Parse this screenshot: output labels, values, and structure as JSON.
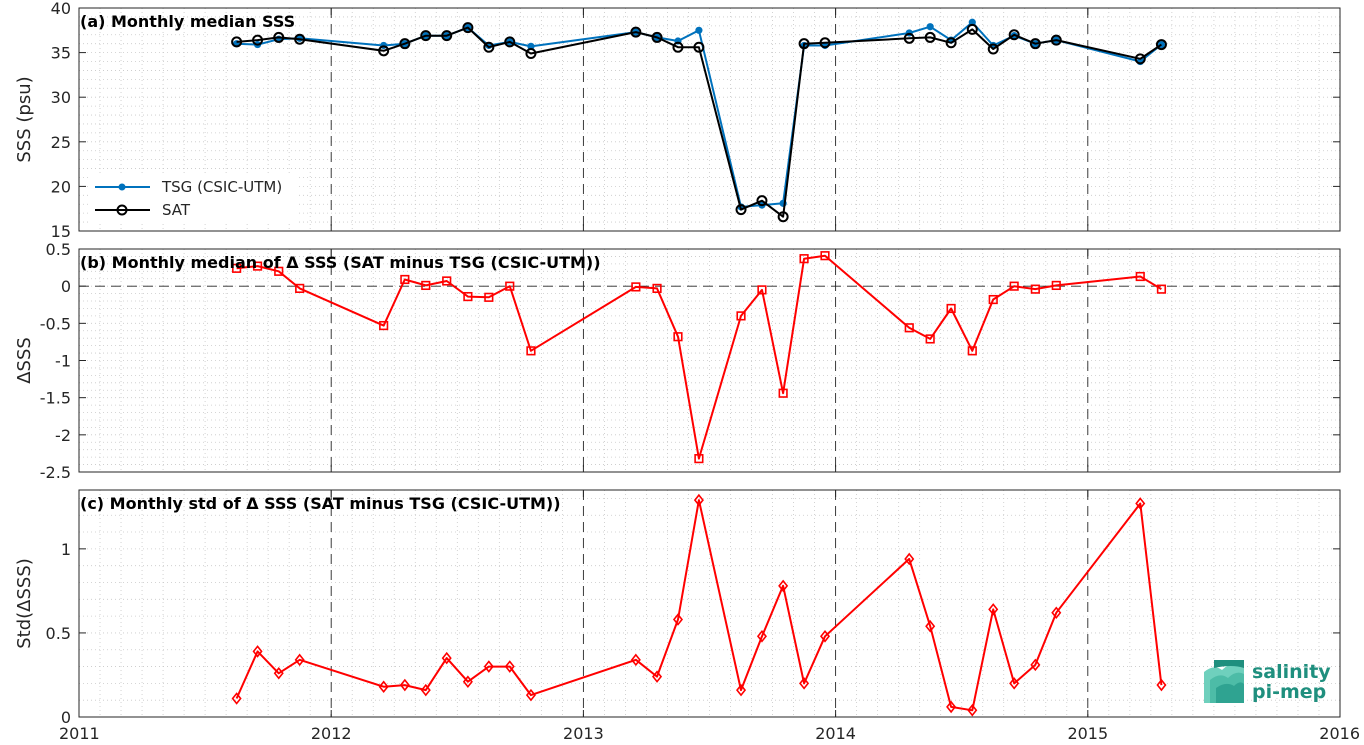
{
  "chart_data": [
    {
      "type": "line",
      "title": "(a) Monthly median SSS",
      "ylabel": "SSS (psu)",
      "xlim": [
        2011,
        2016
      ],
      "ylim": [
        15,
        40
      ],
      "xticks": [
        2011,
        2012,
        2013,
        2014,
        2015,
        2016
      ],
      "yticks": [
        15,
        20,
        25,
        30,
        35,
        40
      ],
      "grid": true,
      "legend_position": "lower-left",
      "series": [
        {
          "name": "TSG (CSIC-UTM)",
          "color": "#0072BD",
          "marker": "dot",
          "x": [
            2011.625,
            2011.708,
            2011.792,
            2011.875,
            2012.208,
            2012.292,
            2012.375,
            2012.458,
            2012.542,
            2012.625,
            2012.708,
            2012.792,
            2013.208,
            2013.292,
            2013.375,
            2013.458,
            2013.625,
            2013.708,
            2013.792,
            2013.875,
            2013.958,
            2014.292,
            2014.375,
            2014.458,
            2014.542,
            2014.625,
            2014.708,
            2014.792,
            2014.875,
            2015.208,
            2015.292
          ],
          "values": [
            36.0,
            35.9,
            36.5,
            36.6,
            35.8,
            36.0,
            36.9,
            36.9,
            37.8,
            35.8,
            36.2,
            35.7,
            37.3,
            36.7,
            36.3,
            37.5,
            17.7,
            17.9,
            18.1,
            35.8,
            35.8,
            37.2,
            37.9,
            36.4,
            38.4,
            35.8,
            36.9,
            36.0,
            36.4,
            34.0,
            35.9
          ]
        },
        {
          "name": "SAT",
          "color": "#000000",
          "marker": "circle",
          "x": [
            2011.625,
            2011.708,
            2011.792,
            2011.875,
            2012.208,
            2012.292,
            2012.375,
            2012.458,
            2012.542,
            2012.625,
            2012.708,
            2012.792,
            2013.208,
            2013.292,
            2013.375,
            2013.458,
            2013.625,
            2013.708,
            2013.792,
            2013.875,
            2013.958,
            2014.292,
            2014.375,
            2014.458,
            2014.542,
            2014.625,
            2014.708,
            2014.792,
            2014.875,
            2015.208,
            2015.292
          ],
          "values": [
            36.2,
            36.4,
            36.7,
            36.5,
            35.2,
            36.0,
            36.9,
            36.9,
            37.8,
            35.6,
            36.2,
            34.9,
            37.3,
            36.7,
            35.6,
            35.6,
            17.4,
            18.4,
            16.6,
            36.0,
            36.1,
            36.6,
            36.7,
            36.1,
            37.6,
            35.4,
            37.0,
            36.0,
            36.4,
            34.3,
            35.9
          ]
        }
      ]
    },
    {
      "type": "line",
      "title": "(b) Monthly median of Δ SSS (SAT minus TSG (CSIC-UTM))",
      "ylabel": "ΔSSS",
      "xlim": [
        2011,
        2016
      ],
      "ylim": [
        -2.5,
        0.5
      ],
      "xticks": [
        2011,
        2012,
        2013,
        2014,
        2015,
        2016
      ],
      "yticks": [
        -2.5,
        -2,
        -1.5,
        -1,
        -0.5,
        0,
        0.5
      ],
      "grid": true,
      "zero_line": true,
      "series": [
        {
          "color": "#FF0000",
          "marker": "square",
          "x": [
            2011.625,
            2011.708,
            2011.792,
            2011.875,
            2012.208,
            2012.292,
            2012.375,
            2012.458,
            2012.542,
            2012.625,
            2012.708,
            2012.792,
            2013.208,
            2013.292,
            2013.375,
            2013.458,
            2013.625,
            2013.708,
            2013.792,
            2013.875,
            2013.958,
            2014.292,
            2014.375,
            2014.458,
            2014.542,
            2014.625,
            2014.708,
            2014.792,
            2014.875,
            2015.208,
            2015.292
          ],
          "values": [
            0.24,
            0.27,
            0.2,
            -0.03,
            -0.53,
            0.09,
            0.01,
            0.07,
            -0.14,
            -0.15,
            0.0,
            -0.87,
            -0.01,
            -0.03,
            -0.68,
            -2.32,
            -0.4,
            -0.05,
            -1.44,
            0.37,
            0.41,
            -0.56,
            -0.71,
            -0.3,
            -0.87,
            -0.18,
            0.0,
            -0.04,
            0.01,
            0.13,
            -0.04
          ]
        }
      ]
    },
    {
      "type": "line",
      "title": "(c) Monthly std of Δ SSS (SAT minus TSG (CSIC-UTM))",
      "ylabel": "Std(ΔSSS)",
      "xlim": [
        2011,
        2016
      ],
      "ylim": [
        0,
        1.35
      ],
      "xticks": [
        2011,
        2012,
        2013,
        2014,
        2015,
        2016
      ],
      "xticklabels": [
        "2011",
        "2012",
        "2013",
        "2014",
        "2015",
        "2016"
      ],
      "yticks": [
        0,
        0.5,
        1
      ],
      "grid": true,
      "series": [
        {
          "color": "#FF0000",
          "marker": "diamond",
          "x": [
            2011.625,
            2011.708,
            2011.792,
            2011.875,
            2012.208,
            2012.292,
            2012.375,
            2012.458,
            2012.542,
            2012.625,
            2012.708,
            2012.792,
            2013.208,
            2013.292,
            2013.375,
            2013.458,
            2013.625,
            2013.708,
            2013.792,
            2013.875,
            2013.958,
            2014.292,
            2014.375,
            2014.458,
            2014.542,
            2014.625,
            2014.708,
            2014.792,
            2014.875,
            2015.208,
            2015.292
          ],
          "values": [
            0.11,
            0.39,
            0.26,
            0.34,
            0.18,
            0.19,
            0.16,
            0.35,
            0.21,
            0.3,
            0.3,
            0.13,
            0.34,
            0.24,
            0.58,
            1.29,
            0.16,
            0.48,
            0.78,
            0.2,
            0.48,
            0.94,
            0.54,
            0.06,
            0.04,
            0.64,
            0.2,
            0.31,
            0.62,
            1.27,
            0.19
          ]
        }
      ]
    }
  ],
  "logo": {
    "line1": "salinity",
    "line2": "pi-mep",
    "color": "#1f8f7e"
  }
}
